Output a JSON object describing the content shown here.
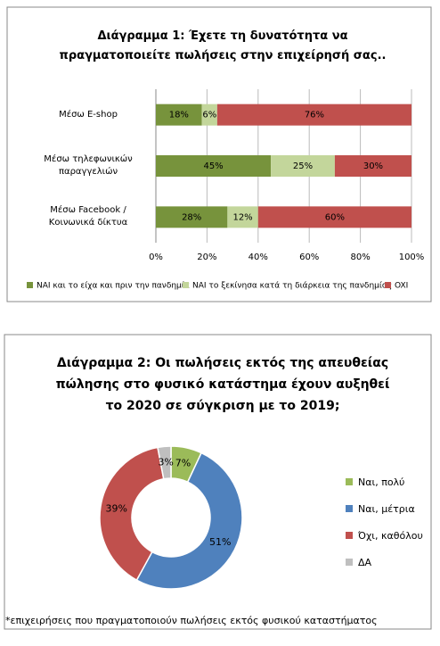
{
  "chart_data": [
    {
      "type": "bar",
      "orientation": "horizontal",
      "stacked": true,
      "title": "Διάγραμμα 1: Έχετε τη δυνατότητα να πραγματοποιείτε πωλήσεις στην επιχείρησή σας..",
      "categories": [
        "Μέσω E-shop",
        "Μέσω τηλεφωνικών παραγγελιών",
        "Μέσω Facebook / Κοινωνικά δίκτυα"
      ],
      "series": [
        {
          "name": "NAI και το είχα και πριν την πανδημία",
          "color": "#77933c",
          "values": [
            18,
            45,
            28
          ],
          "value_labels": [
            "18%",
            "45%",
            "28%"
          ]
        },
        {
          "name": "NAI το ξεκίνησα κατά τη διάρκεια της πανδημίας",
          "color": "#c3d69b",
          "values": [
            6,
            25,
            12
          ],
          "value_labels": [
            "6%",
            "25%",
            "12%"
          ]
        },
        {
          "name": "OXI",
          "color": "#c0504d",
          "values": [
            76,
            30,
            60
          ],
          "value_labels": [
            "76%",
            "30%",
            "60%"
          ]
        }
      ],
      "xlim": [
        0,
        100
      ],
      "xticks": [
        {
          "value": 0,
          "label": "0%"
        },
        {
          "value": 20,
          "label": "20%"
        },
        {
          "value": 40,
          "label": "40%"
        },
        {
          "value": 60,
          "label": "60%"
        },
        {
          "value": 80,
          "label": "80%"
        },
        {
          "value": 100,
          "label": "100%"
        }
      ],
      "legend": "bottom"
    },
    {
      "type": "donut",
      "title": "Διάγραμμα 2: Οι πωλήσεις εκτός της απευθείας πώλησης στο φυσικό κατάστημα έχουν αυξηθεί το 2020 σε σύγκριση με το 2019;",
      "categories": [
        "Ναι, πολύ",
        "Ναι, μέτρια",
        "Όχι, καθόλου",
        "ΔΑ"
      ],
      "values": [
        7,
        51,
        39,
        3
      ],
      "value_labels": [
        "7%",
        "51%",
        "39%",
        "3%"
      ],
      "colors": [
        "#9bbb59",
        "#4f81bd",
        "#c0504d",
        "#bfbfbf"
      ],
      "legend": "right"
    }
  ],
  "footnote": "*επιχειρήσεις που πραγματοποιούν πωλήσεις εκτός φυσικού καταστήματος"
}
